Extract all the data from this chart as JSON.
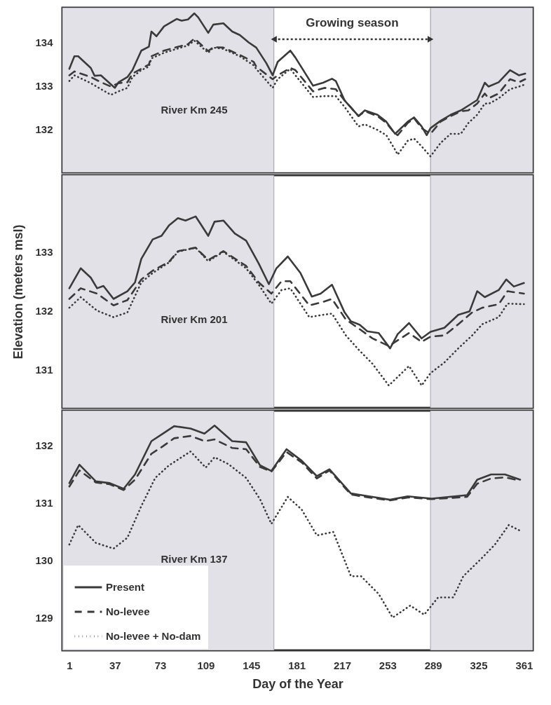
{
  "chart_data": [
    {
      "type": "line",
      "xlim": [
        -4.5,
        368
      ],
      "ylim": [
        131,
        134.8
      ],
      "yticks": [
        132,
        133,
        134
      ],
      "tick_labels": "y",
      "bands": [
        {
          "axis": "x",
          "from": -4.5,
          "to": 163,
          "color": "#e1e1e7"
        },
        {
          "axis": "x",
          "from": 287,
          "to": 368,
          "color": "#e1e1e7"
        },
        {
          "axis": "x",
          "from": 163,
          "to": 287,
          "color": "#ffffff",
          "label": "Growing season"
        }
      ],
      "annotations": [
        "River Km 245"
      ],
      "series": [
        {
          "color": "#3a3a3a",
          "line_style": "solid",
          "x": [
            1,
            5,
            8,
            18,
            21,
            26,
            34,
            37,
            40,
            47,
            51,
            58,
            64,
            66,
            70,
            76,
            86,
            90,
            95,
            100,
            103,
            111,
            115,
            123,
            130,
            136,
            143,
            149,
            157,
            162,
            166,
            171,
            176,
            180,
            194,
            202,
            209,
            212,
            219,
            230,
            235,
            245,
            252,
            259,
            269,
            274,
            280,
            284,
            287,
            295,
            303,
            311,
            317,
            324,
            330,
            333,
            341,
            350,
            357,
            362
          ],
          "values": [
            133.39,
            133.68,
            133.68,
            133.41,
            133.23,
            133.24,
            133.03,
            132.95,
            133.08,
            133.2,
            133.36,
            133.81,
            133.9,
            134.25,
            134.14,
            134.37,
            134.54,
            134.5,
            134.53,
            134.67,
            134.58,
            134.22,
            134.41,
            134.44,
            134.25,
            134.17,
            134.0,
            133.88,
            133.52,
            133.24,
            133.55,
            133.68,
            133.81,
            133.65,
            133.0,
            133.07,
            133.16,
            133.11,
            132.66,
            132.3,
            132.43,
            132.33,
            132.17,
            131.89,
            132.17,
            132.27,
            132.06,
            131.86,
            132.02,
            132.19,
            132.33,
            132.43,
            132.54,
            132.67,
            133.07,
            132.98,
            133.08,
            133.36,
            133.24,
            133.28
          ]
        },
        {
          "color": "#3a3a3a",
          "line_style": "dashed",
          "x": [
            1,
            5,
            18,
            26,
            34,
            40,
            47,
            51,
            58,
            64,
            66,
            76,
            86,
            95,
            100,
            111,
            115,
            123,
            136,
            147,
            149,
            162,
            166,
            176,
            180,
            194,
            203,
            212,
            219,
            230,
            235,
            245,
            252,
            259,
            261,
            269,
            274,
            280,
            287,
            295,
            303,
            311,
            317,
            324,
            330,
            333,
            341,
            350,
            357,
            362
          ],
          "values": [
            133.24,
            133.33,
            133.2,
            133.08,
            132.98,
            133.06,
            133.08,
            133.28,
            133.39,
            133.49,
            133.68,
            133.81,
            133.89,
            133.96,
            134.09,
            133.8,
            133.89,
            133.88,
            133.71,
            133.55,
            133.44,
            133.15,
            133.24,
            133.41,
            133.36,
            132.87,
            132.95,
            132.92,
            132.66,
            132.3,
            132.41,
            132.3,
            132.14,
            131.89,
            131.86,
            132.14,
            132.25,
            132.02,
            131.89,
            132.17,
            132.3,
            132.41,
            132.43,
            132.59,
            132.82,
            132.71,
            132.82,
            133.15,
            133.08,
            133.15
          ]
        },
        {
          "color": "#3a3a3a",
          "line_style": "dotted",
          "x": [
            1,
            5,
            18,
            26,
            34,
            40,
            47,
            51,
            58,
            64,
            66,
            76,
            86,
            95,
            100,
            111,
            115,
            123,
            136,
            147,
            149,
            162,
            166,
            176,
            180,
            194,
            203,
            212,
            219,
            230,
            235,
            245,
            252,
            259,
            261,
            269,
            274,
            280,
            287,
            295,
            303,
            311,
            317,
            324,
            330,
            333,
            341,
            350,
            357,
            362
          ],
          "values": [
            133.11,
            133.24,
            133.06,
            132.92,
            132.79,
            132.87,
            132.95,
            133.2,
            133.36,
            133.44,
            133.63,
            133.76,
            133.85,
            133.93,
            134.04,
            133.76,
            133.88,
            133.85,
            133.68,
            133.47,
            133.39,
            132.95,
            133.15,
            133.39,
            133.24,
            132.74,
            132.76,
            132.76,
            132.51,
            132.06,
            132.11,
            131.98,
            131.86,
            131.52,
            131.41,
            131.73,
            131.78,
            131.6,
            131.37,
            131.68,
            131.89,
            131.89,
            132.14,
            132.33,
            132.59,
            132.58,
            132.71,
            132.92,
            132.98,
            133.03
          ]
        }
      ]
    },
    {
      "type": "line",
      "xlim": [
        -4.5,
        368
      ],
      "ylim": [
        130.35,
        134.3
      ],
      "yticks": [
        131,
        132,
        133
      ],
      "ylabel": "Elevation (meters msl)",
      "tick_labels": "y",
      "bands": [
        {
          "axis": "x",
          "from": -4.5,
          "to": 163,
          "color": "#e1e1e7"
        },
        {
          "axis": "x",
          "from": 287,
          "to": 368,
          "color": "#e1e1e7"
        }
      ],
      "annotations": [
        "River Km 201"
      ],
      "series": [
        {
          "color": "#3a3a3a",
          "line_style": "solid",
          "x": [
            1,
            10,
            18,
            23,
            28,
            36,
            47,
            53,
            58,
            67,
            74,
            80,
            87,
            93,
            101,
            105,
            111,
            116,
            123,
            132,
            141,
            151,
            159,
            165,
            174,
            184,
            193,
            200,
            209,
            219,
            224,
            231,
            237,
            246,
            255,
            261,
            270,
            280,
            287,
            298,
            309,
            318,
            324,
            330,
            341,
            347,
            353,
            361
          ],
          "values": [
            132.38,
            132.72,
            132.56,
            132.38,
            132.42,
            132.2,
            132.33,
            132.48,
            132.88,
            133.21,
            133.27,
            133.45,
            133.57,
            133.53,
            133.6,
            133.47,
            133.27,
            133.51,
            133.53,
            133.31,
            133.19,
            132.8,
            132.45,
            132.72,
            132.92,
            132.64,
            132.24,
            132.29,
            132.44,
            131.97,
            131.82,
            131.76,
            131.65,
            131.62,
            131.36,
            131.6,
            131.79,
            131.53,
            131.64,
            131.71,
            131.93,
            131.99,
            132.33,
            132.23,
            132.35,
            132.53,
            132.41,
            132.47
          ]
        },
        {
          "color": "#3a3a3a",
          "line_style": "dashed",
          "x": [
            1,
            10,
            23,
            36,
            47,
            58,
            67,
            80,
            87,
            101,
            111,
            123,
            141,
            151,
            161,
            169,
            176,
            191,
            202,
            209,
            220,
            230,
            241,
            254,
            270,
            280,
            287,
            298,
            309,
            320,
            328,
            341,
            348,
            361
          ],
          "values": [
            132.2,
            132.38,
            132.29,
            132.09,
            132.18,
            132.53,
            132.68,
            132.83,
            133.01,
            133.07,
            132.86,
            133.01,
            132.76,
            132.48,
            132.29,
            132.5,
            132.5,
            132.09,
            132.15,
            132.2,
            131.85,
            131.7,
            131.53,
            131.4,
            131.62,
            131.47,
            131.56,
            131.58,
            131.77,
            131.97,
            132.05,
            132.11,
            132.33,
            132.29
          ]
        },
        {
          "color": "#3a3a3a",
          "line_style": "dotted",
          "x": [
            1,
            10,
            23,
            36,
            47,
            58,
            67,
            80,
            87,
            101,
            111,
            123,
            141,
            151,
            161,
            169,
            176,
            191,
            202,
            209,
            220,
            230,
            241,
            254,
            270,
            280,
            287,
            298,
            309,
            320,
            328,
            341,
            348,
            361
          ],
          "values": [
            132.05,
            132.23,
            132.0,
            131.89,
            131.97,
            132.48,
            132.64,
            132.82,
            133.0,
            133.07,
            132.84,
            133.0,
            132.72,
            132.44,
            132.12,
            132.35,
            132.38,
            131.89,
            131.93,
            131.95,
            131.58,
            131.34,
            131.1,
            130.73,
            131.06,
            130.73,
            130.94,
            131.12,
            131.36,
            131.58,
            131.77,
            131.89,
            132.12,
            132.11
          ]
        }
      ]
    },
    {
      "type": "line",
      "xlim": [
        -4.5,
        368
      ],
      "ylim": [
        128.43,
        132.6
      ],
      "yticks": [
        129,
        130,
        131,
        132
      ],
      "xticks": [
        1,
        37,
        73,
        109,
        145,
        181,
        217,
        253,
        289,
        325,
        361
      ],
      "xlabel": "Day of the Year",
      "legend": "bottom left",
      "bands": [
        {
          "axis": "x",
          "from": -4.5,
          "to": 163,
          "color": "#e1e1e7"
        },
        {
          "axis": "x",
          "from": 287,
          "to": 368,
          "color": "#e1e1e7"
        }
      ],
      "annotations": [
        "River Km 137"
      ],
      "series": [
        {
          "name": "Present",
          "color": "#3a3a3a",
          "line_style": "solid",
          "x": [
            1,
            9,
            22,
            33,
            44,
            53,
            66,
            75,
            84,
            97,
            108,
            116,
            130,
            141,
            152,
            161,
            173,
            185,
            197,
            207,
            224,
            241,
            255,
            269,
            288,
            316,
            324,
            335,
            346,
            358
          ],
          "values": [
            131.34,
            131.66,
            131.37,
            131.34,
            131.24,
            131.49,
            132.07,
            132.2,
            132.33,
            132.29,
            132.2,
            132.34,
            132.07,
            132.05,
            131.65,
            131.55,
            131.93,
            131.73,
            131.46,
            131.58,
            131.16,
            131.1,
            131.05,
            131.11,
            131.07,
            131.13,
            131.4,
            131.49,
            131.49,
            131.4
          ]
        },
        {
          "name": "No-levee",
          "color": "#3a3a3a",
          "line_style": "dashed",
          "x": [
            1,
            9,
            22,
            33,
            44,
            53,
            66,
            75,
            84,
            97,
            108,
            116,
            130,
            141,
            152,
            161,
            173,
            185,
            197,
            207,
            224,
            241,
            255,
            269,
            288,
            316,
            324,
            335,
            346,
            358
          ],
          "values": [
            131.28,
            131.56,
            131.35,
            131.32,
            131.22,
            131.4,
            131.85,
            131.98,
            132.12,
            132.16,
            132.07,
            132.1,
            131.95,
            131.93,
            131.62,
            131.54,
            131.88,
            131.7,
            131.42,
            131.56,
            131.14,
            131.08,
            131.04,
            131.09,
            131.06,
            131.1,
            131.33,
            131.42,
            131.44,
            131.38
          ]
        },
        {
          "name": "No-levee + No-dam",
          "color": "#3a3a3a",
          "line_style": "dotted",
          "x": [
            1,
            8,
            22,
            36,
            47,
            58,
            69,
            80,
            97,
            109,
            116,
            127,
            141,
            152,
            161,
            174,
            185,
            197,
            210,
            224,
            232,
            246,
            257,
            271,
            282,
            293,
            305,
            313,
            327,
            338,
            349,
            358
          ],
          "values": [
            130.27,
            130.61,
            130.3,
            130.2,
            130.39,
            130.94,
            131.43,
            131.65,
            131.89,
            131.61,
            131.79,
            131.67,
            131.43,
            131.06,
            130.63,
            131.1,
            130.88,
            130.43,
            130.49,
            129.72,
            129.72,
            129.41,
            129.0,
            129.21,
            129.05,
            129.35,
            129.35,
            129.72,
            130.02,
            130.27,
            130.61,
            130.51
          ]
        }
      ]
    }
  ]
}
